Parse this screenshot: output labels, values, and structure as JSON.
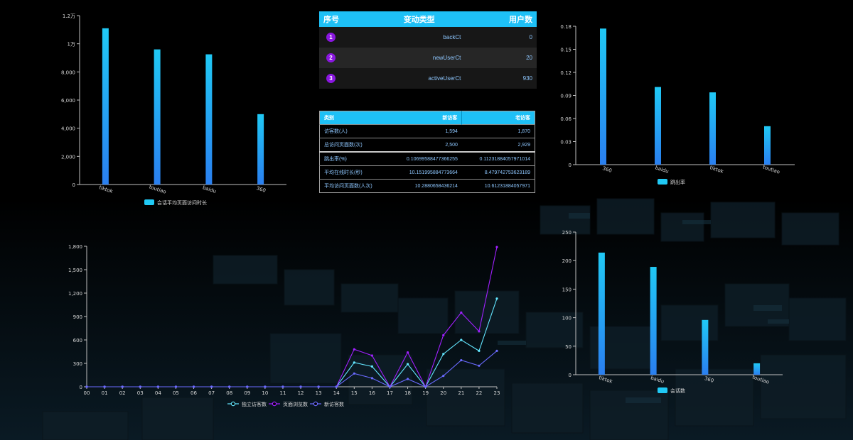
{
  "chart_data": [
    {
      "type": "bar",
      "categories": [
        "tiktok",
        "toutiao",
        "baidu",
        "360"
      ],
      "values": [
        11100,
        9600,
        9250,
        5000
      ],
      "yticks": [
        "0",
        "2,000",
        "4,000",
        "6,000",
        "8,000",
        "1万",
        "1.2万"
      ],
      "ylim": [
        0,
        12000
      ],
      "legend": "会话平均页面访问时长",
      "color_top": "#20c9f5",
      "color_bottom": "#2a7ff0"
    },
    {
      "type": "bar",
      "categories": [
        "360",
        "baidu",
        "tiktok",
        "toutiao"
      ],
      "values": [
        0.177,
        0.101,
        0.094,
        0.05
      ],
      "yticks": [
        "0",
        "0.03",
        "0.06",
        "0.09",
        "0.12",
        "0.15",
        "0.18"
      ],
      "ylim": [
        0,
        0.18
      ],
      "legend": "跳出率",
      "color_top": "#20c9f5",
      "color_bottom": "#2a7ff0"
    },
    {
      "type": "bar",
      "categories": [
        "tiktok",
        "baidu",
        "360",
        "toutiao"
      ],
      "values": [
        214,
        189,
        96,
        20
      ],
      "yticks": [
        "0",
        "50",
        "100",
        "150",
        "200",
        "250"
      ],
      "ylim": [
        0,
        250
      ],
      "legend": "会话数",
      "color_top": "#20c9f5",
      "color_bottom": "#2a7ff0"
    },
    {
      "type": "line",
      "x": [
        "00",
        "01",
        "02",
        "03",
        "04",
        "05",
        "06",
        "07",
        "08",
        "09",
        "10",
        "11",
        "12",
        "13",
        "14",
        "15",
        "16",
        "17",
        "18",
        "19",
        "20",
        "21",
        "22",
        "23"
      ],
      "yticks": [
        "0",
        "300",
        "600",
        "900",
        "1,200",
        "1,500",
        "1,800"
      ],
      "ylim": [
        0,
        1800
      ],
      "series": [
        {
          "name": "独立访客数",
          "color": "#63e6ff",
          "values": [
            0,
            0,
            0,
            0,
            0,
            0,
            0,
            0,
            0,
            0,
            0,
            0,
            0,
            0,
            0,
            310,
            260,
            0,
            290,
            0,
            420,
            600,
            460,
            1130
          ]
        },
        {
          "name": "页面浏览数",
          "color": "#a020ff",
          "values": [
            0,
            0,
            0,
            0,
            0,
            0,
            0,
            0,
            0,
            0,
            0,
            0,
            0,
            0,
            0,
            480,
            400,
            0,
            440,
            0,
            660,
            950,
            710,
            1790
          ]
        },
        {
          "name": "新访客数",
          "color": "#6a6aff",
          "values": [
            0,
            0,
            0,
            0,
            0,
            0,
            0,
            0,
            0,
            0,
            0,
            0,
            0,
            0,
            0,
            170,
            110,
            0,
            100,
            0,
            140,
            340,
            270,
            460
          ]
        }
      ]
    }
  ],
  "table1": {
    "headers": [
      "序号",
      "变动类型",
      "用户数"
    ],
    "rows": [
      {
        "index": "1",
        "type": "backCt",
        "count": "0"
      },
      {
        "index": "2",
        "type": "newUserCt",
        "count": "20"
      },
      {
        "index": "3",
        "type": "activeUserCt",
        "count": "930"
      }
    ]
  },
  "table2": {
    "headers": [
      "类别",
      "新访客",
      "老访客"
    ],
    "rows": [
      {
        "label": "访客数(人)",
        "new": "1,594",
        "old": "1,870"
      },
      {
        "label": "总访问页面数(次)",
        "new": "2,500",
        "old": "2,929"
      },
      {
        "label": "跳出率(%)",
        "new": "0.10699588477366255",
        "old": "0.11231884057971014"
      },
      {
        "label": "平均在线时长(秒)",
        "new": "10.151995884773664",
        "old": "8.479742753623189"
      },
      {
        "label": "平均访问页面数(人次)",
        "new": "10.2880658436214",
        "old": "10.61231884057971"
      }
    ]
  },
  "colors": {
    "accent": "#1ec0f6",
    "badge": "#8a16e0",
    "cell_text": "#8ec7ff"
  }
}
